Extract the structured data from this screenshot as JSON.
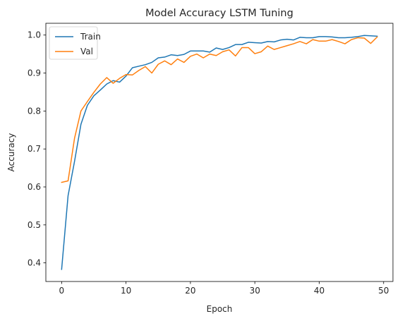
{
  "chart_data": {
    "type": "line",
    "title": "Model Accuracy LSTM Tuning",
    "xlabel": "Epoch",
    "ylabel": "Accuracy",
    "xlim": [
      -2.45,
      51.45
    ],
    "ylim": [
      0.351,
      1.031
    ],
    "xticks": [
      0,
      10,
      20,
      30,
      40,
      50
    ],
    "yticks": [
      0.4,
      0.5,
      0.6,
      0.7,
      0.8,
      0.9,
      1.0
    ],
    "ytick_labels": [
      "0.4",
      "0.5",
      "0.6",
      "0.7",
      "0.8",
      "0.9",
      "1.0"
    ],
    "grid": false,
    "legend_position": "top-left",
    "x": [
      0,
      1,
      2,
      3,
      4,
      5,
      6,
      7,
      8,
      9,
      10,
      11,
      12,
      13,
      14,
      15,
      16,
      17,
      18,
      19,
      20,
      21,
      22,
      23,
      24,
      25,
      26,
      27,
      28,
      29,
      30,
      31,
      32,
      33,
      34,
      35,
      36,
      37,
      38,
      39,
      40,
      41,
      42,
      43,
      44,
      45,
      46,
      47,
      48,
      49
    ],
    "series": [
      {
        "name": "Train",
        "color": "#1f77b4",
        "values": [
          0.383,
          0.577,
          0.667,
          0.765,
          0.815,
          0.84,
          0.855,
          0.871,
          0.88,
          0.876,
          0.892,
          0.914,
          0.918,
          0.922,
          0.928,
          0.94,
          0.942,
          0.948,
          0.946,
          0.949,
          0.958,
          0.958,
          0.958,
          0.955,
          0.966,
          0.962,
          0.967,
          0.975,
          0.975,
          0.981,
          0.98,
          0.979,
          0.983,
          0.982,
          0.987,
          0.989,
          0.987,
          0.994,
          0.993,
          0.993,
          0.996,
          0.996,
          0.995,
          0.993,
          0.993,
          0.994,
          0.996,
          0.999,
          0.998,
          0.997
        ]
      },
      {
        "name": "Val",
        "color": "#ff7f0e",
        "values": [
          0.612,
          0.616,
          0.728,
          0.8,
          0.825,
          0.849,
          0.871,
          0.888,
          0.873,
          0.886,
          0.896,
          0.895,
          0.907,
          0.917,
          0.9,
          0.923,
          0.932,
          0.922,
          0.937,
          0.928,
          0.944,
          0.95,
          0.94,
          0.95,
          0.946,
          0.956,
          0.961,
          0.945,
          0.967,
          0.967,
          0.951,
          0.956,
          0.971,
          0.962,
          0.967,
          0.972,
          0.977,
          0.983,
          0.977,
          0.988,
          0.984,
          0.984,
          0.988,
          0.983,
          0.977,
          0.988,
          0.993,
          0.992,
          0.978,
          0.995
        ]
      }
    ]
  }
}
